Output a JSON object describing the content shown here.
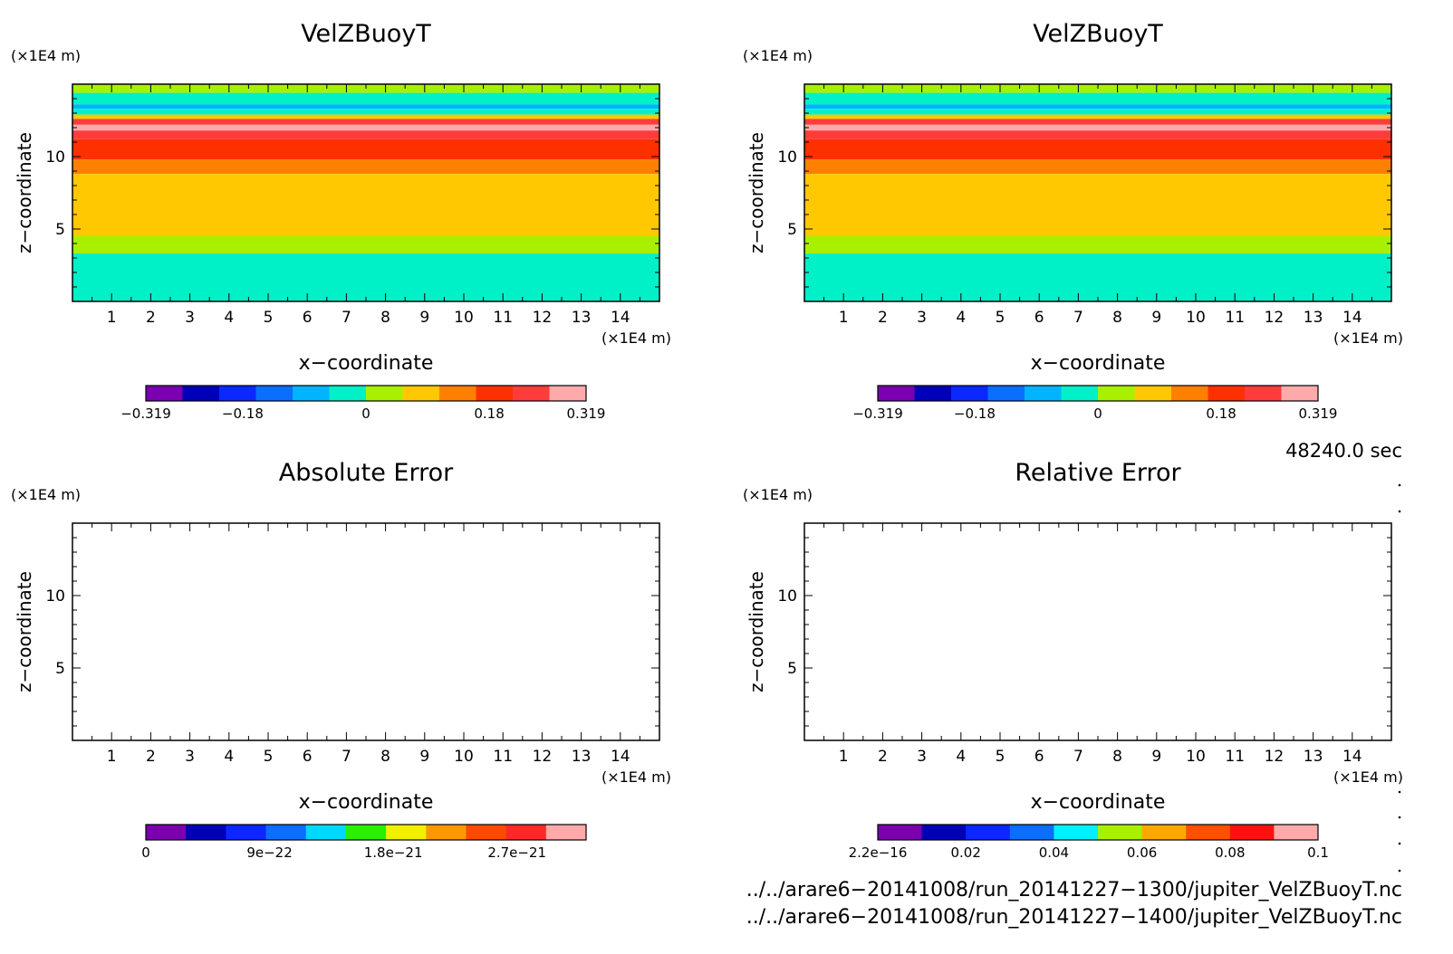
{
  "chart_data": [
    {
      "type": "heatmap",
      "title": "VelZBuoyT",
      "xlabel": "x−coordinate",
      "ylabel": "z−coordinate",
      "x_unit": "(×1E4 m)",
      "y_unit": "(×1E4 m)",
      "xlim": [
        0,
        15
      ],
      "ylim": [
        0,
        15
      ],
      "xticks": [
        "1",
        "2",
        "3",
        "4",
        "5",
        "6",
        "7",
        "8",
        "9",
        "10",
        "11",
        "12",
        "13",
        "14"
      ],
      "yticks": [
        "5",
        "10"
      ],
      "colorbar": {
        "colors": [
          "#7a00b0",
          "#0000b8",
          "#0a28ff",
          "#0a6eff",
          "#00b4ff",
          "#00f0c8",
          "#a8f000",
          "#ffc800",
          "#ff8000",
          "#ff3000",
          "#ff3c3c",
          "#ffaaaa"
        ],
        "tick_labels": [
          "−0.319",
          "−0.18",
          "0",
          "0.18",
          "0.319"
        ],
        "tick_positions": [
          0,
          0.22,
          0.5,
          0.78,
          1
        ]
      },
      "bands": [
        {
          "z_top": 15.0,
          "color": "#a8f000"
        },
        {
          "z_top": 14.4,
          "color": "#00f0c8"
        },
        {
          "z_top": 13.6,
          "color": "#00b4ff"
        },
        {
          "z_top": 13.3,
          "color": "#00f0c8"
        },
        {
          "z_top": 12.9,
          "color": "#ffc800"
        },
        {
          "z_top": 12.6,
          "color": "#ff3c3c"
        },
        {
          "z_top": 12.2,
          "color": "#ffaaaa"
        },
        {
          "z_top": 11.8,
          "color": "#ff3c3c"
        },
        {
          "z_top": 11.2,
          "color": "#ff3000"
        },
        {
          "z_top": 9.8,
          "color": "#ff8000"
        },
        {
          "z_top": 8.8,
          "color": "#ffc800"
        },
        {
          "z_top": 4.5,
          "color": "#a8f000"
        },
        {
          "z_top": 3.3,
          "color": "#00f0c8"
        }
      ]
    },
    {
      "type": "heatmap",
      "title": "VelZBuoyT",
      "xlabel": "x−coordinate",
      "ylabel": "z−coordinate",
      "x_unit": "(×1E4 m)",
      "y_unit": "(×1E4 m)",
      "xlim": [
        0,
        15
      ],
      "ylim": [
        0,
        15
      ],
      "xticks": [
        "1",
        "2",
        "3",
        "4",
        "5",
        "6",
        "7",
        "8",
        "9",
        "10",
        "11",
        "12",
        "13",
        "14"
      ],
      "yticks": [
        "5",
        "10"
      ],
      "colorbar": {
        "colors": [
          "#7a00b0",
          "#0000b8",
          "#0a28ff",
          "#0a6eff",
          "#00b4ff",
          "#00f0c8",
          "#a8f000",
          "#ffc800",
          "#ff8000",
          "#ff3000",
          "#ff3c3c",
          "#ffaaaa"
        ],
        "tick_labels": [
          "−0.319",
          "−0.18",
          "0",
          "0.18",
          "0.319"
        ],
        "tick_positions": [
          0,
          0.22,
          0.5,
          0.78,
          1
        ]
      },
      "bands": [
        {
          "z_top": 15.0,
          "color": "#a8f000"
        },
        {
          "z_top": 14.4,
          "color": "#00f0c8"
        },
        {
          "z_top": 13.6,
          "color": "#00b4ff"
        },
        {
          "z_top": 13.3,
          "color": "#00f0c8"
        },
        {
          "z_top": 12.9,
          "color": "#ffc800"
        },
        {
          "z_top": 12.6,
          "color": "#ff3c3c"
        },
        {
          "z_top": 12.2,
          "color": "#ffaaaa"
        },
        {
          "z_top": 11.8,
          "color": "#ff3c3c"
        },
        {
          "z_top": 11.2,
          "color": "#ff3000"
        },
        {
          "z_top": 9.8,
          "color": "#ff8000"
        },
        {
          "z_top": 8.8,
          "color": "#ffc800"
        },
        {
          "z_top": 4.5,
          "color": "#a8f000"
        },
        {
          "z_top": 3.3,
          "color": "#00f0c8"
        }
      ]
    },
    {
      "type": "heatmap",
      "title": "Absolute Error",
      "xlabel": "x−coordinate",
      "ylabel": "z−coordinate",
      "x_unit": "(×1E4 m)",
      "y_unit": "(×1E4 m)",
      "xlim": [
        0,
        15
      ],
      "ylim": [
        0,
        15
      ],
      "xticks": [
        "1",
        "2",
        "3",
        "4",
        "5",
        "6",
        "7",
        "8",
        "9",
        "10",
        "11",
        "12",
        "13",
        "14"
      ],
      "yticks": [
        "5",
        "10"
      ],
      "colorbar": {
        "colors": [
          "#7a00b0",
          "#0000b8",
          "#0a28ff",
          "#0a6eff",
          "#00d8ff",
          "#28f000",
          "#f0f000",
          "#ff9800",
          "#ff4800",
          "#ff2828",
          "#ffaaaa"
        ],
        "tick_labels": [
          "0",
          "9e−22",
          "1.8e−21",
          "2.7e−21"
        ],
        "tick_positions": [
          0,
          0.281,
          0.562,
          0.843
        ]
      },
      "bands": []
    },
    {
      "type": "heatmap",
      "title": "Relative Error",
      "xlabel": "x−coordinate",
      "ylabel": "z−coordinate",
      "x_unit": "(×1E4 m)",
      "y_unit": "(×1E4 m)",
      "xlim": [
        0,
        15
      ],
      "ylim": [
        0,
        15
      ],
      "xticks": [
        "1",
        "2",
        "3",
        "4",
        "5",
        "6",
        "7",
        "8",
        "9",
        "10",
        "11",
        "12",
        "13",
        "14"
      ],
      "yticks": [
        "5",
        "10"
      ],
      "colorbar": {
        "colors": [
          "#7a00b0",
          "#0000b8",
          "#0a28ff",
          "#0a6eff",
          "#00f0ff",
          "#a8f000",
          "#ffa800",
          "#ff5000",
          "#ff1010",
          "#ffaaaa"
        ],
        "tick_labels": [
          "2.2e−16",
          "0.02",
          "0.04",
          "0.06",
          "0.08",
          "0.1"
        ],
        "tick_positions": [
          0,
          0.2,
          0.4,
          0.6,
          0.8,
          1
        ]
      },
      "bands": []
    }
  ],
  "time_label": "48240.0 sec",
  "files": [
    "../../arare6−20141008/run_20141227−1300/jupiter_VelZBuoyT.nc",
    "../../arare6−20141008/run_20141227−1400/jupiter_VelZBuoyT.nc"
  ]
}
